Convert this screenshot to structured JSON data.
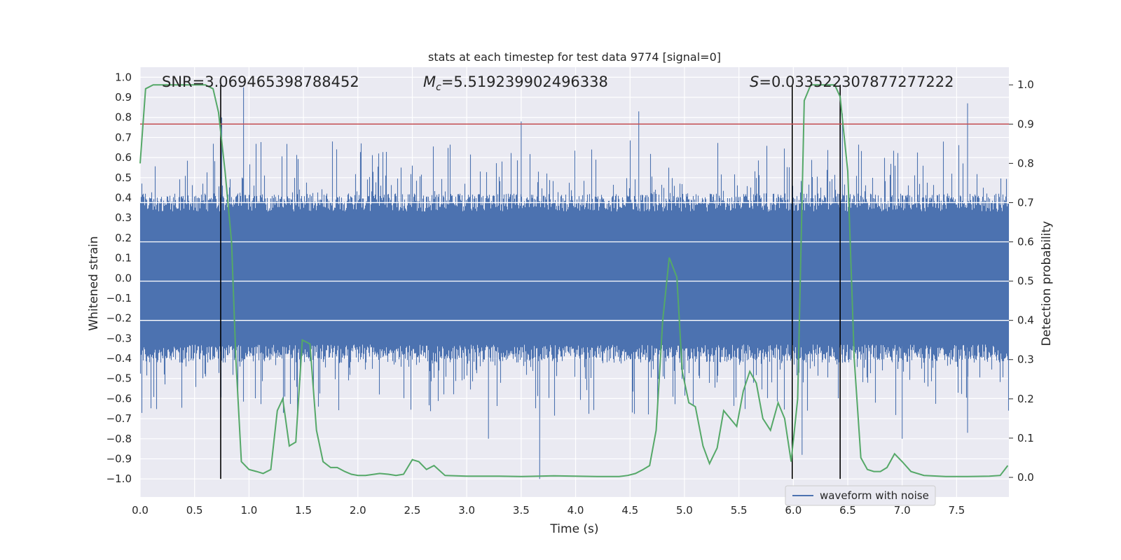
{
  "chart_data": {
    "type": "line",
    "title": "stats at each timestep for test data 9774 [signal=0]",
    "xlabel": "Time (s)",
    "ylabel": "Whitened strain",
    "y2label": "Detection probability",
    "xlim": [
      0.0,
      7.98
    ],
    "ylim": [
      -1.09,
      1.05
    ],
    "y2lim": [
      -0.05,
      1.045
    ],
    "x_ticks": [
      "0.0",
      "0.5",
      "1.0",
      "1.5",
      "2.0",
      "2.5",
      "3.0",
      "3.5",
      "4.0",
      "4.5",
      "5.0",
      "5.5",
      "6.0",
      "6.5",
      "7.0",
      "7.5"
    ],
    "y_ticks": [
      "1.0",
      "0.9",
      "0.8",
      "0.7",
      "0.6",
      "0.5",
      "0.4",
      "0.3",
      "0.2",
      "0.1",
      "0.0",
      "-0.1",
      "-0.2",
      "-0.3",
      "-0.4",
      "-0.5",
      "-0.6",
      "-0.7",
      "-0.8",
      "-0.9",
      "-1.0"
    ],
    "y2_ticks": [
      "1.0",
      "0.9",
      "0.8",
      "0.7",
      "0.6",
      "0.5",
      "0.4",
      "0.3",
      "0.2",
      "0.1",
      "0.0"
    ],
    "annotations": {
      "snr": "SNR=3.069465398788452",
      "mc_symbol": "M",
      "mc_sub": "c",
      "mc_value": "=5.519239902496338",
      "s_symbol": "S",
      "s_value": "=0.033522307877277222"
    },
    "legend": {
      "label": "waveform with noise",
      "position": "lower-center-right"
    },
    "threshold": {
      "y2": 0.9,
      "color": "#c44e52"
    },
    "vertical_lines": [
      0.74,
      5.99,
      6.43
    ],
    "series": [
      {
        "name": "waveform with noise",
        "axis": "left",
        "color": "#4c72b0",
        "style": "noise",
        "typical_amplitude": 0.36,
        "notable_peaks": [
          {
            "x": 0.95,
            "y": 0.95
          },
          {
            "x": 0.75,
            "y": 0.8
          },
          {
            "x": 3.5,
            "y": 0.78
          },
          {
            "x": 4.58,
            "y": 0.83
          },
          {
            "x": 6.45,
            "y": 0.82
          },
          {
            "x": 7.6,
            "y": 0.87
          },
          {
            "x": 3.67,
            "y": -1.0
          },
          {
            "x": 3.2,
            "y": -0.8
          },
          {
            "x": 7.6,
            "y": -0.77
          },
          {
            "x": 6.08,
            "y": -0.88
          },
          {
            "x": 7.0,
            "y": -0.8
          }
        ]
      },
      {
        "name": "detection probability",
        "axis": "right",
        "color": "#55a868",
        "x": [
          0.0,
          0.05,
          0.12,
          0.2,
          0.3,
          0.4,
          0.5,
          0.6,
          0.67,
          0.72,
          0.78,
          0.84,
          0.88,
          0.93,
          1.0,
          1.07,
          1.13,
          1.2,
          1.26,
          1.31,
          1.37,
          1.43,
          1.49,
          1.56,
          1.62,
          1.68,
          1.75,
          1.81,
          1.88,
          1.94,
          2.0,
          2.07,
          2.15,
          2.2,
          2.28,
          2.35,
          2.42,
          2.5,
          2.56,
          2.63,
          2.7,
          2.8,
          3.0,
          3.3,
          3.5,
          3.8,
          4.0,
          4.2,
          4.4,
          4.48,
          4.55,
          4.62,
          4.68,
          4.74,
          4.8,
          4.86,
          4.93,
          4.98,
          5.04,
          5.1,
          5.17,
          5.23,
          5.3,
          5.36,
          5.42,
          5.48,
          5.54,
          5.6,
          5.66,
          5.72,
          5.79,
          5.86,
          5.92,
          5.98,
          6.04,
          6.1,
          6.16,
          6.22,
          6.3,
          6.38,
          6.43,
          6.5,
          6.56,
          6.62,
          6.68,
          6.74,
          6.8,
          6.86,
          6.93,
          7.0,
          7.08,
          7.2,
          7.4,
          7.6,
          7.8,
          7.9,
          7.97
        ],
        "y": [
          0.8,
          0.99,
          1.0,
          1.0,
          1.0,
          1.0,
          1.0,
          1.0,
          0.99,
          0.93,
          0.78,
          0.6,
          0.3,
          0.04,
          0.02,
          0.015,
          0.01,
          0.02,
          0.17,
          0.2,
          0.08,
          0.09,
          0.35,
          0.34,
          0.12,
          0.04,
          0.025,
          0.025,
          0.015,
          0.008,
          0.005,
          0.005,
          0.008,
          0.01,
          0.008,
          0.005,
          0.008,
          0.045,
          0.04,
          0.02,
          0.03,
          0.005,
          0.003,
          0.003,
          0.002,
          0.004,
          0.003,
          0.002,
          0.002,
          0.005,
          0.01,
          0.02,
          0.03,
          0.12,
          0.4,
          0.56,
          0.51,
          0.27,
          0.19,
          0.18,
          0.08,
          0.035,
          0.075,
          0.17,
          0.15,
          0.13,
          0.22,
          0.27,
          0.24,
          0.15,
          0.12,
          0.19,
          0.15,
          0.04,
          0.2,
          0.96,
          1.0,
          1.0,
          1.0,
          1.0,
          0.97,
          0.78,
          0.3,
          0.05,
          0.02,
          0.015,
          0.015,
          0.025,
          0.06,
          0.04,
          0.015,
          0.005,
          0.002,
          0.002,
          0.003,
          0.005,
          0.03
        ]
      }
    ]
  }
}
